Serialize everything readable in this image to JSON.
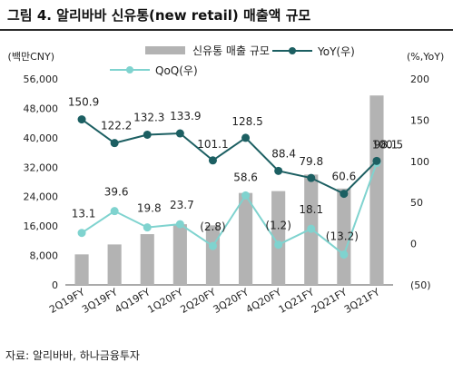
{
  "header": {
    "title": "그림 4. 알리바바 신유통(new retail) 매출액 규모"
  },
  "footer": {
    "source": "자료: 알리바바, 하나금융투자"
  },
  "chart_data": {
    "type": "bar",
    "categories": [
      "2Q19FY",
      "3Q19FY",
      "4Q19FY",
      "1Q20FY",
      "2Q20FY",
      "3Q20FY",
      "4Q20FY",
      "1Q21FY",
      "2Q21FY",
      "3Q21FY"
    ],
    "series": [
      {
        "name": "신유통 매출 규모",
        "type": "bar",
        "axis": "left",
        "values": [
          8300,
          11000,
          13800,
          16500,
          16200,
          25000,
          25500,
          30000,
          26200,
          51500
        ]
      },
      {
        "name": "YoY(우)",
        "type": "line",
        "axis": "right",
        "values": [
          150.9,
          122.2,
          132.3,
          133.9,
          101.1,
          128.5,
          88.4,
          79.8,
          60.6,
          100.5
        ]
      },
      {
        "name": "QoQ(우)",
        "type": "line",
        "axis": "right",
        "values": [
          13.1,
          39.6,
          19.8,
          23.7,
          -2.8,
          58.6,
          -1.2,
          18.1,
          -13.2,
          98.1
        ]
      }
    ],
    "yoy_labels": [
      "150.9",
      "122.2",
      "132.3",
      "133.9",
      "101.1",
      "128.5",
      "88.4",
      "79.8",
      "60.6",
      "100.5"
    ],
    "qoq_labels": [
      "13.1",
      "39.6",
      "19.8",
      "23.7",
      "(2.8)",
      "58.6",
      "(1.2)",
      "18.1",
      "(13.2)",
      "98.1"
    ],
    "y_left": {
      "label": "(백만CNY)",
      "min": 0,
      "max": 56000,
      "ticks": [
        "0",
        "8,000",
        "16,000",
        "24,000",
        "32,000",
        "40,000",
        "48,000",
        "56,000"
      ]
    },
    "y_right": {
      "label": "(%,YoY)",
      "min": -50,
      "max": 200,
      "ticks": [
        "(50)",
        "0",
        "50",
        "100",
        "150",
        "200"
      ]
    },
    "colors": {
      "bar": "#b3b3b3",
      "yoy": "#1c5f62",
      "qoq": "#7fd3cf"
    },
    "legend_position": "top"
  }
}
